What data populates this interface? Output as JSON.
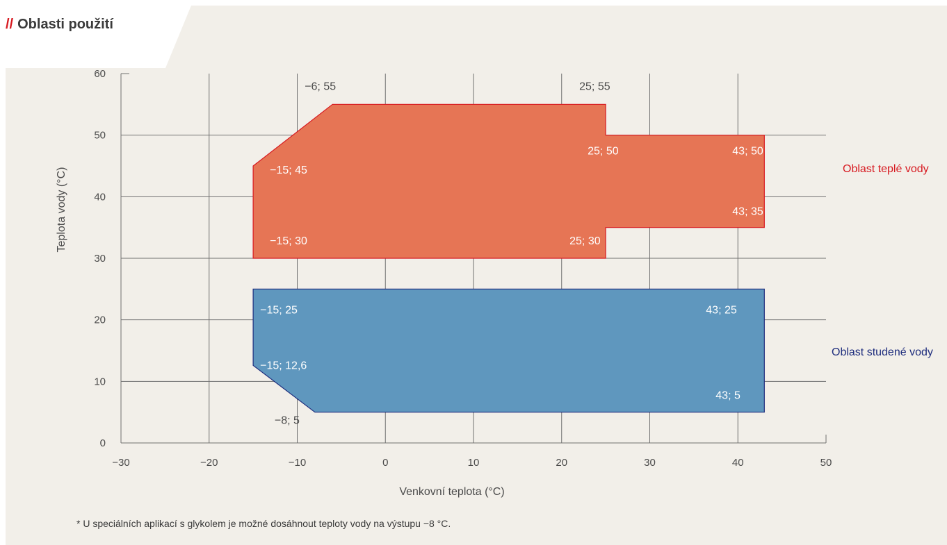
{
  "header": {
    "slashes": "//",
    "title": "Oblasti použití"
  },
  "footnote": "* U speciálních aplikací s glykolem je možné dosáhnout teploty vody na výstupu −8 °C.",
  "colors": {
    "background": "#f2efe9",
    "grid": "#707070",
    "warm_fill": "#e67555",
    "warm_stroke": "#d71920",
    "cold_fill": "#5f97be",
    "cold_stroke": "#1e2d7d",
    "warm_label": "#d71920",
    "cold_label": "#1e2d7d"
  },
  "chart_data": {
    "type": "area",
    "xlabel": "Venkovní teplota (°C)",
    "ylabel": "Teplota vody (°C)",
    "xlim": [
      -30,
      50
    ],
    "ylim": [
      0,
      60
    ],
    "xticks": [
      -30,
      -20,
      -10,
      0,
      10,
      20,
      30,
      40,
      50
    ],
    "yticks": [
      0,
      10,
      20,
      30,
      40,
      50,
      60
    ],
    "xtick_labels": [
      "−30",
      "−20",
      "−10",
      "0",
      "10",
      "20",
      "30",
      "40",
      "50"
    ],
    "ytick_labels": [
      "0",
      "10",
      "20",
      "30",
      "40",
      "50",
      "60"
    ],
    "grid": true,
    "series": [
      {
        "name": "Oblast teplé vody",
        "points": [
          [
            -15,
            45
          ],
          [
            -6,
            55
          ],
          [
            25,
            55
          ],
          [
            25,
            50
          ],
          [
            43,
            50
          ],
          [
            43,
            35
          ],
          [
            25,
            35
          ],
          [
            25,
            30
          ],
          [
            -15,
            30
          ]
        ],
        "labels": [
          {
            "text": "−6; 55",
            "at": [
              -6,
              55
            ],
            "style": "outside"
          },
          {
            "text": "25; 55",
            "at": [
              25,
              55
            ],
            "style": "outside"
          },
          {
            "text": "25; 50",
            "at": [
              25,
              50
            ],
            "style": "inside"
          },
          {
            "text": "43; 50",
            "at": [
              43,
              50
            ],
            "style": "inside"
          },
          {
            "text": "−15; 45",
            "at": [
              -15,
              45
            ],
            "style": "inside"
          },
          {
            "text": "43; 35",
            "at": [
              43,
              35
            ],
            "style": "inside"
          },
          {
            "text": "−15; 30",
            "at": [
              -15,
              30
            ],
            "style": "inside"
          },
          {
            "text": "25; 30",
            "at": [
              25,
              30
            ],
            "style": "inside"
          }
        ]
      },
      {
        "name": "Oblast studené vody",
        "points": [
          [
            -15,
            25
          ],
          [
            43,
            25
          ],
          [
            43,
            5
          ],
          [
            -8,
            5
          ],
          [
            -15,
            12.6
          ]
        ],
        "labels": [
          {
            "text": "−15; 25",
            "at": [
              -15,
              25
            ],
            "style": "inside"
          },
          {
            "text": "43; 25",
            "at": [
              43,
              25
            ],
            "style": "inside"
          },
          {
            "text": "−15; 12,6",
            "at": [
              -15,
              12.6
            ],
            "style": "inside"
          },
          {
            "text": "43; 5",
            "at": [
              43,
              5
            ],
            "style": "inside"
          },
          {
            "text": "−8; 5",
            "at": [
              -8,
              5
            ],
            "style": "outside"
          }
        ]
      }
    ]
  }
}
